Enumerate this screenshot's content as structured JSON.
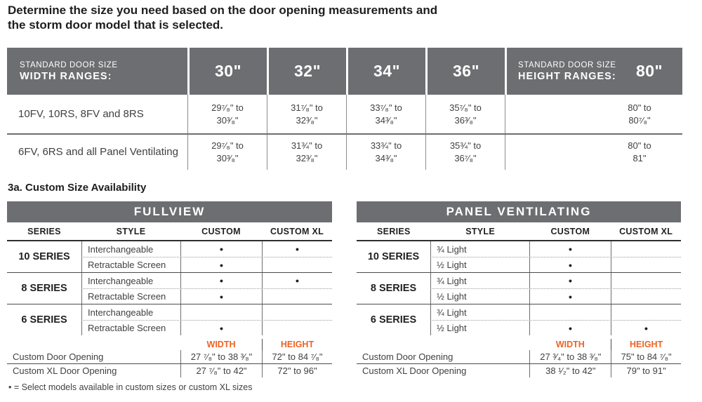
{
  "colors": {
    "bar_gray": "#6d6e71",
    "accent_orange": "#ee6323"
  },
  "title": "Determine the size you need based on the door opening measurements and the storm door model that is selected.",
  "size_table": {
    "width_header": {
      "line1": "STANDARD DOOR SIZE",
      "line2": "WIDTH RANGES:"
    },
    "width_columns": [
      "30\"",
      "32\"",
      "34\"",
      "36\""
    ],
    "height_header": {
      "line1": "STANDARD DOOR SIZE",
      "line2": "HEIGHT RANGES:",
      "value": "80\""
    },
    "rows": [
      {
        "label": "10FV, 10RS, 8FV and 8RS",
        "w": [
          {
            "l1": "29⁷⁄₈\" to",
            "l2": "30³⁄₈\""
          },
          {
            "l1": "31⁷⁄₈\" to",
            "l2": "32³⁄₈\""
          },
          {
            "l1": "33⁷⁄₈\" to",
            "l2": "34³⁄₈\""
          },
          {
            "l1": "35⁷⁄₈\" to",
            "l2": "36³⁄₈\""
          }
        ],
        "h": {
          "l1": "80\" to",
          "l2": "80⁷⁄₈\""
        }
      },
      {
        "label": "6FV, 6RS and all Panel Ventilating",
        "w": [
          {
            "l1": "29⁷⁄₈\" to",
            "l2": "30³⁄₈\""
          },
          {
            "l1": "31¾\" to",
            "l2": "32³⁄₈\""
          },
          {
            "l1": "33¾\" to",
            "l2": "34³⁄₈\""
          },
          {
            "l1": "35¾\" to",
            "l2": "36⁷⁄₈\""
          }
        ],
        "h": {
          "l1": "80\" to",
          "l2": "81\""
        }
      }
    ]
  },
  "section_heading": "3a. Custom Size Availability",
  "fullview": {
    "title": "FULLVIEW",
    "columns": {
      "series": "SERIES",
      "style": "STYLE",
      "custom": "CUSTOM",
      "custom_xl": "CUSTOM XL"
    },
    "groups": [
      {
        "series": "10 SERIES",
        "rows": [
          {
            "style": "Interchangeable",
            "custom": "•",
            "custom_xl": "•"
          },
          {
            "style": "Retractable Screen",
            "custom": "•",
            "custom_xl": ""
          }
        ]
      },
      {
        "series": "8 SERIES",
        "rows": [
          {
            "style": "Interchangeable",
            "custom": "•",
            "custom_xl": "•"
          },
          {
            "style": "Retractable Screen",
            "custom": "•",
            "custom_xl": ""
          }
        ]
      },
      {
        "series": "6 SERIES",
        "rows": [
          {
            "style": "Interchangeable",
            "custom": "",
            "custom_xl": ""
          },
          {
            "style": "Retractable Screen",
            "custom": "•",
            "custom_xl": ""
          }
        ]
      }
    ],
    "openings": {
      "width_label": "WIDTH",
      "height_label": "HEIGHT",
      "rows": [
        {
          "label": "Custom Door Opening",
          "width": "27 ⁷⁄₈\" to 38 ³⁄₈\"",
          "height": "72\" to 84 ⁷⁄₈\""
        },
        {
          "label": "Custom XL Door Opening",
          "width": "27 ⁷⁄₈\" to 42\"",
          "height": "72\" to 96\""
        }
      ]
    }
  },
  "panel_ventilating": {
    "title": "PANEL VENTILATING",
    "columns": {
      "series": "SERIES",
      "style": "STYLE",
      "custom": "CUSTOM",
      "custom_xl": "CUSTOM XL"
    },
    "groups": [
      {
        "series": "10 SERIES",
        "rows": [
          {
            "style": "¾ Light",
            "custom": "•",
            "custom_xl": ""
          },
          {
            "style": "½ Light",
            "custom": "•",
            "custom_xl": ""
          }
        ]
      },
      {
        "series": "8 SERIES",
        "rows": [
          {
            "style": "¾ Light",
            "custom": "•",
            "custom_xl": ""
          },
          {
            "style": "½ Light",
            "custom": "•",
            "custom_xl": ""
          }
        ]
      },
      {
        "series": "6 SERIES",
        "rows": [
          {
            "style": "¾ Light",
            "custom": "",
            "custom_xl": ""
          },
          {
            "style": "½ Light",
            "custom": "•",
            "custom_xl": "•"
          }
        ]
      }
    ],
    "openings": {
      "width_label": "WIDTH",
      "height_label": "HEIGHT",
      "rows": [
        {
          "label": "Custom Door Opening",
          "width": "27 ³⁄₄\" to 38 ³⁄₈\"",
          "height": "75\" to 84 ⁷⁄₈\""
        },
        {
          "label": "Custom XL Door Opening",
          "width": "38 ¹⁄₂\" to 42\"",
          "height": "79\" to 91\""
        }
      ]
    }
  },
  "footnote": "• = Select models available in custom sizes or custom XL sizes"
}
